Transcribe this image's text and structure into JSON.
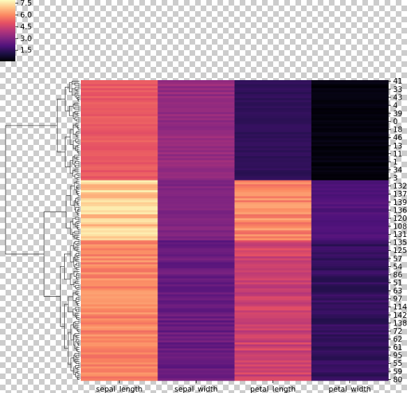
{
  "chart_data": {
    "type": "heatmap",
    "title": "",
    "xlabel": "",
    "ylabel": "",
    "columns": [
      "sepal_length",
      "sepal_width",
      "petal_length",
      "petal_width"
    ],
    "row_tick_labels": [
      "41",
      "33",
      "43",
      "4",
      "39",
      "0",
      "18",
      "46",
      "13",
      "11",
      "1",
      "34",
      "3",
      "132",
      "137",
      "139",
      "136",
      "120",
      "108",
      "131",
      "135",
      "125",
      "57",
      "54",
      "86",
      "51",
      "63",
      "97",
      "114",
      "142",
      "138",
      "72",
      "62",
      "61",
      "95",
      "55",
      "59",
      "80"
    ],
    "row_count": 150,
    "colorbar": {
      "ticks": [
        7.5,
        6.0,
        4.5,
        3.0,
        1.5
      ],
      "tick_labels": [
        "7.5",
        "6.0",
        "4.5",
        "3.0",
        "1.5"
      ],
      "range": [
        0.1,
        7.9
      ],
      "colormap": "magma",
      "placement": "top-left"
    },
    "cluster_blocks": [
      {
        "rows": 50,
        "sepal_length": [
          4.9,
          5.4
        ],
        "sepal_width": [
          3.1,
          3.7
        ],
        "petal_length": [
          1.3,
          1.6
        ],
        "petal_width": [
          0.1,
          0.4
        ]
      },
      {
        "rows": 30,
        "sepal_length": [
          6.5,
          7.7
        ],
        "sepal_width": [
          2.8,
          3.2
        ],
        "petal_length": [
          5.4,
          6.6
        ],
        "petal_width": [
          1.9,
          2.3
        ]
      },
      {
        "rows": 70,
        "sepal_length": [
          5.5,
          6.4
        ],
        "sepal_width": [
          2.2,
          2.9
        ],
        "petal_length": [
          4.0,
          5.0
        ],
        "petal_width": [
          1.2,
          1.8
        ]
      }
    ],
    "dendrogram": "row-linkage",
    "grid": false
  }
}
